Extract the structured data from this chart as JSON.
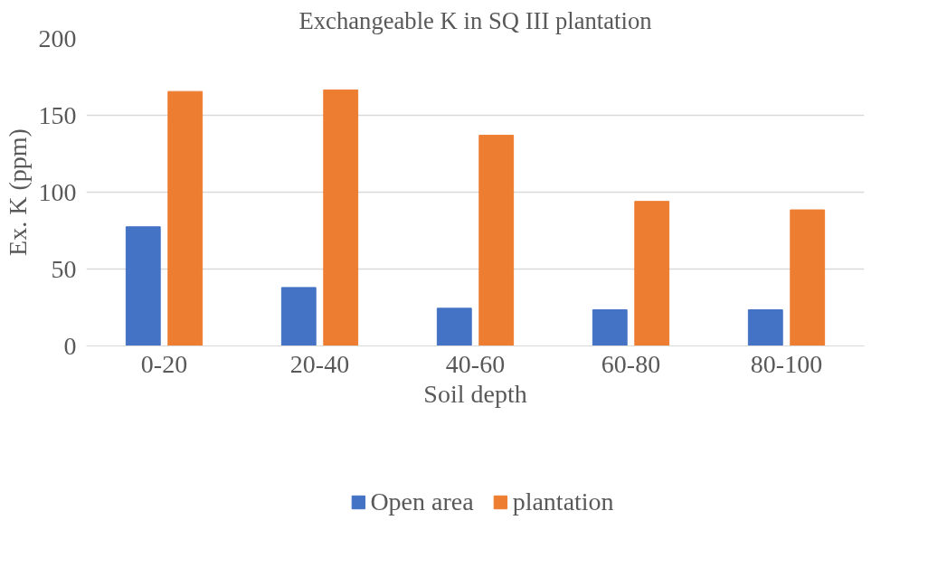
{
  "chart_data": {
    "type": "bar",
    "title": "Exchangeable K in SQ III plantation",
    "xlabel": "Soil depth",
    "ylabel": "Ex. K (ppm)",
    "categories": [
      "0-20",
      "20-40",
      "40-60",
      "60-80",
      "80-100"
    ],
    "series": [
      {
        "name": "Open area",
        "color": "#4472c4",
        "values": [
          77.5,
          38,
          24.5,
          23.5,
          23.5
        ]
      },
      {
        "name": "plantation",
        "color": "#ed7d31",
        "values": [
          165.5,
          166.5,
          137,
          94,
          88.5
        ]
      }
    ],
    "ylim": [
      0,
      200
    ],
    "yticks": [
      0,
      50,
      100,
      150,
      200
    ],
    "grid": "y",
    "legend": "bottom"
  }
}
